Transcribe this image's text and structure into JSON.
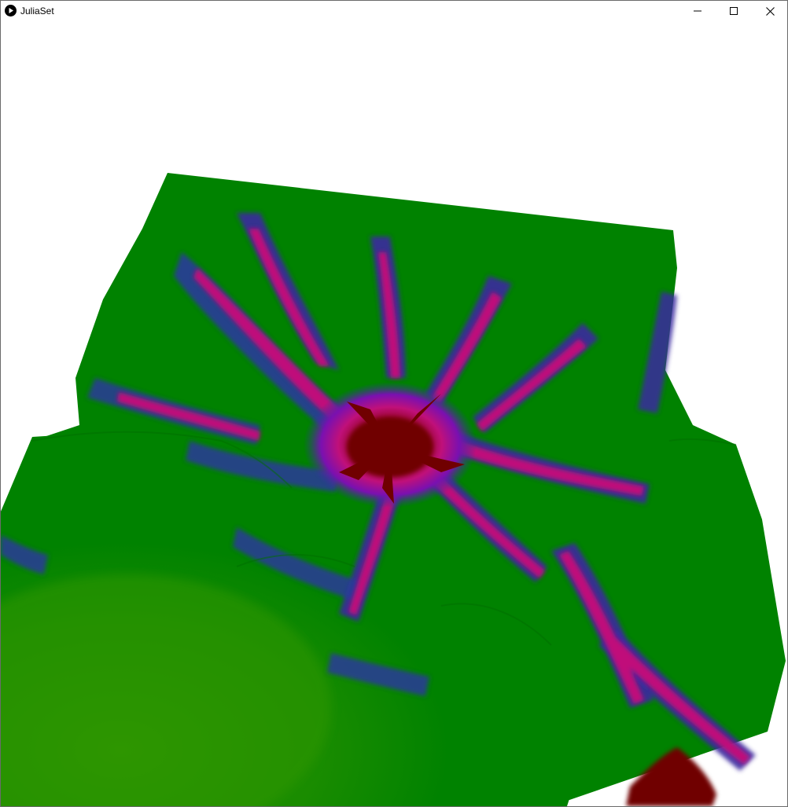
{
  "window": {
    "title": "JuliaSet",
    "app_icon": "play-circle-icon",
    "controls": {
      "minimize_icon": "minimize-icon",
      "maximize_icon": "maximize-icon",
      "close_icon": "close-icon"
    }
  },
  "render": {
    "description_icon": "julia-set-3d-surface",
    "colors": {
      "background": "#ffffff",
      "low_green": "#2e9600",
      "green": "#008200",
      "teal": "#0a6a5a",
      "blue": "#2a3a9a",
      "purple": "#7a10b0",
      "magenta": "#c0107a",
      "crimson": "#a00040",
      "dark_red": "#700000"
    }
  }
}
